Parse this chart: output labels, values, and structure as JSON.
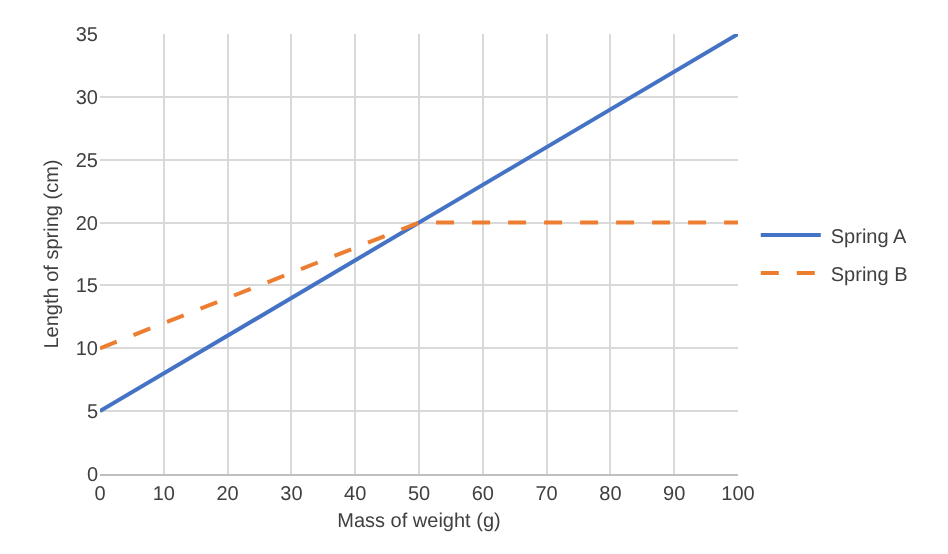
{
  "chart_data": {
    "type": "line",
    "xlabel": "Mass of weight (g)",
    "ylabel": "Length of spring (cm)",
    "series": [
      {
        "name": "Spring A",
        "color": "#4472c4",
        "x": [
          0,
          100
        ],
        "values": [
          5,
          35
        ],
        "line_style": "solid"
      },
      {
        "name": "Spring B",
        "color": "#ed7d31",
        "x": [
          0,
          50,
          100
        ],
        "values": [
          10,
          20,
          20
        ],
        "line_style": "dashed"
      }
    ],
    "xlim": [
      0,
      100
    ],
    "xticks": [
      0,
      10,
      20,
      30,
      40,
      50,
      60,
      70,
      80,
      90,
      100
    ],
    "ylim": [
      0,
      35
    ],
    "yticks": [
      0,
      5,
      10,
      15,
      20,
      25,
      30,
      35
    ],
    "grid": true,
    "legend": "right",
    "marker": "none"
  }
}
